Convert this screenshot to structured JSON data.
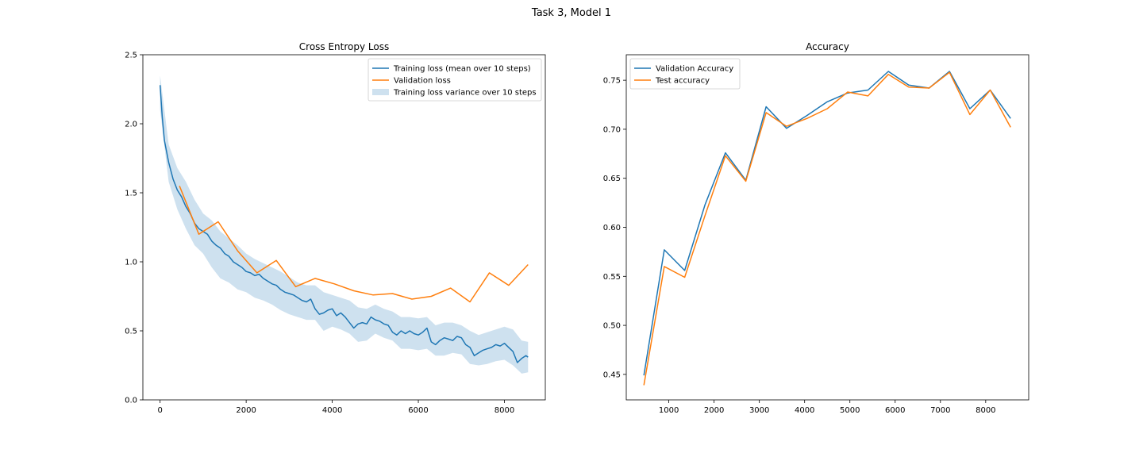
{
  "figure": {
    "title": "Task 3, Model 1"
  },
  "colors": {
    "blue": "#1f77b4",
    "orange": "#ff7f0e",
    "band": "#1f77b4"
  },
  "chart_data": [
    {
      "type": "line",
      "title": "Cross Entropy Loss",
      "xlabel": "",
      "ylabel": "",
      "xlim": [
        -400,
        8950
      ],
      "ylim": [
        0,
        2.5
      ],
      "xticks": [
        0,
        2000,
        4000,
        6000,
        8000
      ],
      "xtick_labels": [
        "0",
        "2000",
        "4000",
        "6000",
        "8000"
      ],
      "yticks": [
        0,
        0.5,
        1.0,
        1.5,
        2.0,
        2.5
      ],
      "ytick_labels": [
        "0.0",
        "0.5",
        "1.0",
        "1.5",
        "2.0",
        "2.5"
      ],
      "grid": false,
      "legend": "top-right",
      "legend_entries": [
        "Training loss (mean over 10 steps)",
        "Validation loss",
        "Training loss variance over 10 steps"
      ],
      "series": [
        {
          "name": "Training loss (mean over 10 steps)",
          "color": "blue",
          "style": "line",
          "x": [
            0,
            50,
            100,
            200,
            300,
            400,
            500,
            600,
            700,
            800,
            900,
            1000,
            1100,
            1200,
            1300,
            1400,
            1500,
            1600,
            1700,
            1800,
            1900,
            2000,
            2100,
            2200,
            2300,
            2400,
            2500,
            2600,
            2700,
            2800,
            2900,
            3000,
            3100,
            3200,
            3300,
            3400,
            3500,
            3600,
            3700,
            3800,
            3900,
            4000,
            4100,
            4200,
            4300,
            4400,
            4500,
            4600,
            4700,
            4800,
            4900,
            5000,
            5100,
            5200,
            5300,
            5400,
            5500,
            5600,
            5700,
            5800,
            5900,
            6000,
            6100,
            6200,
            6300,
            6400,
            6500,
            6600,
            6700,
            6800,
            6900,
            7000,
            7100,
            7200,
            7300,
            7400,
            7500,
            7600,
            7700,
            7800,
            7900,
            8000,
            8100,
            8200,
            8300,
            8400,
            8500,
            8550
          ],
          "y": [
            2.28,
            2.05,
            1.88,
            1.72,
            1.6,
            1.52,
            1.47,
            1.4,
            1.35,
            1.28,
            1.24,
            1.22,
            1.2,
            1.15,
            1.12,
            1.1,
            1.06,
            1.04,
            1.0,
            0.98,
            0.96,
            0.93,
            0.92,
            0.9,
            0.91,
            0.88,
            0.86,
            0.84,
            0.83,
            0.8,
            0.78,
            0.77,
            0.76,
            0.74,
            0.72,
            0.71,
            0.73,
            0.66,
            0.62,
            0.63,
            0.65,
            0.66,
            0.61,
            0.63,
            0.6,
            0.56,
            0.52,
            0.55,
            0.56,
            0.55,
            0.6,
            0.58,
            0.57,
            0.55,
            0.54,
            0.49,
            0.47,
            0.5,
            0.48,
            0.5,
            0.48,
            0.47,
            0.49,
            0.52,
            0.42,
            0.4,
            0.43,
            0.45,
            0.44,
            0.43,
            0.46,
            0.45,
            0.4,
            0.38,
            0.32,
            0.34,
            0.36,
            0.37,
            0.38,
            0.4,
            0.39,
            0.41,
            0.38,
            0.35,
            0.27,
            0.3,
            0.32,
            0.31
          ]
        },
        {
          "name": "Validation loss",
          "color": "orange",
          "style": "line",
          "x": [
            450,
            900,
            1350,
            1800,
            2250,
            2700,
            3150,
            3600,
            4050,
            4500,
            4950,
            5400,
            5850,
            6300,
            6750,
            7200,
            7650,
            8100,
            8550
          ],
          "y": [
            1.55,
            1.2,
            1.29,
            1.08,
            0.92,
            1.01,
            0.82,
            0.88,
            0.84,
            0.79,
            0.76,
            0.77,
            0.73,
            0.75,
            0.81,
            0.71,
            0.92,
            0.83,
            0.98
          ]
        },
        {
          "name": "Training loss variance over 10 steps",
          "color": "band",
          "style": "band",
          "x": [
            0,
            200,
            400,
            600,
            800,
            1000,
            1200,
            1400,
            1600,
            1800,
            2000,
            2200,
            2400,
            2600,
            2800,
            3000,
            3200,
            3400,
            3600,
            3800,
            4000,
            4200,
            4400,
            4600,
            4800,
            5000,
            5200,
            5400,
            5600,
            5800,
            6000,
            6200,
            6400,
            6600,
            6800,
            7000,
            7200,
            7400,
            7600,
            7800,
            8000,
            8200,
            8400,
            8550
          ],
          "upper": [
            2.35,
            1.85,
            1.68,
            1.58,
            1.45,
            1.35,
            1.3,
            1.22,
            1.17,
            1.12,
            1.06,
            1.02,
            0.99,
            0.96,
            0.93,
            0.89,
            0.85,
            0.83,
            0.83,
            0.78,
            0.76,
            0.74,
            0.72,
            0.67,
            0.66,
            0.69,
            0.66,
            0.64,
            0.6,
            0.6,
            0.59,
            0.6,
            0.54,
            0.56,
            0.56,
            0.54,
            0.5,
            0.47,
            0.49,
            0.51,
            0.53,
            0.51,
            0.43,
            0.42
          ],
          "lower": [
            2.1,
            1.58,
            1.38,
            1.24,
            1.12,
            1.06,
            0.96,
            0.88,
            0.85,
            0.8,
            0.78,
            0.74,
            0.72,
            0.69,
            0.65,
            0.62,
            0.6,
            0.58,
            0.58,
            0.5,
            0.53,
            0.51,
            0.48,
            0.42,
            0.43,
            0.48,
            0.45,
            0.43,
            0.37,
            0.37,
            0.36,
            0.37,
            0.32,
            0.32,
            0.34,
            0.33,
            0.26,
            0.25,
            0.26,
            0.28,
            0.29,
            0.25,
            0.19,
            0.2
          ]
        }
      ]
    },
    {
      "type": "line",
      "title": "Accuracy",
      "xlabel": "",
      "ylabel": "",
      "xlim": [
        60,
        8950
      ],
      "ylim": [
        0.424,
        0.776
      ],
      "xticks": [
        1000,
        2000,
        3000,
        4000,
        5000,
        6000,
        7000,
        8000
      ],
      "xtick_labels": [
        "1000",
        "2000",
        "3000",
        "4000",
        "5000",
        "6000",
        "7000",
        "8000"
      ],
      "yticks": [
        0.45,
        0.5,
        0.55,
        0.6,
        0.65,
        0.7,
        0.75
      ],
      "ytick_labels": [
        "0.45",
        "0.50",
        "0.55",
        "0.60",
        "0.65",
        "0.70",
        "0.75"
      ],
      "grid": false,
      "legend": "top-left",
      "legend_entries": [
        "Validation Accuracy",
        "Test accuracy"
      ],
      "series": [
        {
          "name": "Validation Accuracy",
          "color": "blue",
          "style": "line",
          "x": [
            450,
            900,
            1350,
            1800,
            2250,
            2700,
            3150,
            3600,
            4050,
            4500,
            4950,
            5400,
            5850,
            6300,
            6750,
            7200,
            7650,
            8100,
            8550
          ],
          "y": [
            0.449,
            0.577,
            0.556,
            0.623,
            0.676,
            0.648,
            0.723,
            0.701,
            0.714,
            0.728,
            0.737,
            0.74,
            0.759,
            0.745,
            0.742,
            0.759,
            0.721,
            0.74,
            0.711
          ]
        },
        {
          "name": "Test accuracy",
          "color": "orange",
          "style": "line",
          "x": [
            450,
            900,
            1350,
            1800,
            2250,
            2700,
            3150,
            3600,
            4050,
            4500,
            4950,
            5400,
            5850,
            6300,
            6750,
            7200,
            7650,
            8100,
            8550
          ],
          "y": [
            0.439,
            0.56,
            0.549,
            0.612,
            0.673,
            0.647,
            0.717,
            0.703,
            0.711,
            0.721,
            0.738,
            0.734,
            0.756,
            0.743,
            0.742,
            0.758,
            0.715,
            0.74,
            0.702
          ]
        }
      ]
    }
  ]
}
